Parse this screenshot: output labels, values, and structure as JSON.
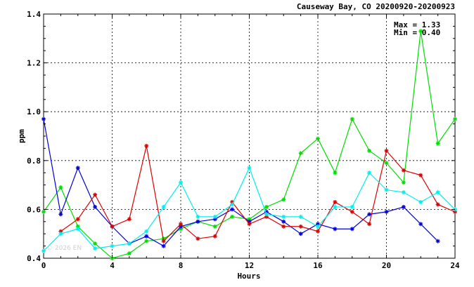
{
  "chart_data": {
    "type": "line",
    "title": "Causeway Bay, CO 20200920-20200923",
    "xlabel": "Hours",
    "ylabel": "ppm",
    "xlim": [
      0,
      24
    ],
    "ylim": [
      0.4,
      1.4
    ],
    "x_ticks": [
      "0",
      "4",
      "8",
      "12",
      "16",
      "20",
      "24"
    ],
    "y_ticks": [
      "0.4",
      "0.6",
      "0.8",
      "1.0",
      "1.2",
      "1.4"
    ],
    "grid": true,
    "stats": {
      "max": "Max = 1.33",
      "min": "Min = 0.40"
    },
    "watermark": "© 2026 EN",
    "series": [
      {
        "color": "#00dd00",
        "x": [
          0,
          1,
          2,
          3,
          4,
          5,
          6,
          7,
          8,
          9,
          10,
          11,
          12,
          13,
          14,
          15,
          16,
          17,
          18,
          19,
          20,
          21,
          22,
          23,
          24
        ],
        "values": [
          0.59,
          0.69,
          0.53,
          0.46,
          0.4,
          0.42,
          0.47,
          0.48,
          0.52,
          0.55,
          0.53,
          0.57,
          0.56,
          0.61,
          0.64,
          0.83,
          0.89,
          0.75,
          0.97,
          0.84,
          0.79,
          0.71,
          1.33,
          0.87,
          0.97
        ]
      },
      {
        "color": "#0000dd",
        "x": [
          0,
          1,
          2,
          3,
          4,
          5,
          6,
          7,
          8,
          9,
          10,
          11,
          12,
          13,
          14,
          15,
          16,
          17,
          18,
          19,
          20,
          21,
          22,
          23
        ],
        "values": [
          0.97,
          0.58,
          0.77,
          0.61,
          0.53,
          0.46,
          0.49,
          0.45,
          0.53,
          0.55,
          0.56,
          0.6,
          0.55,
          0.59,
          0.55,
          0.5,
          0.54,
          0.52,
          0.52,
          0.58,
          0.59,
          0.61,
          0.54,
          0.47
        ]
      },
      {
        "color": "#dd0000",
        "x": [
          1,
          2,
          3,
          4,
          5,
          6,
          7,
          8,
          9,
          10,
          11,
          12,
          13,
          14,
          15,
          16,
          17,
          18,
          19,
          20,
          21,
          22,
          23,
          24
        ],
        "values": [
          0.51,
          0.56,
          0.66,
          0.53,
          0.56,
          0.86,
          0.47,
          0.54,
          0.48,
          0.49,
          0.63,
          0.54,
          0.57,
          0.53,
          0.53,
          0.51,
          0.63,
          0.59,
          0.54,
          0.84,
          0.76,
          0.74,
          0.62,
          0.59
        ]
      },
      {
        "color": "#00eeee",
        "x": [
          0,
          1,
          2,
          3,
          4,
          5,
          6,
          7,
          8,
          9,
          10,
          11,
          12,
          13,
          14,
          15,
          16,
          17,
          18,
          19,
          20,
          21,
          22,
          23,
          24
        ],
        "values": [
          0.43,
          0.5,
          0.52,
          0.44,
          0.45,
          0.46,
          0.51,
          0.61,
          0.71,
          0.57,
          0.57,
          0.62,
          0.77,
          0.58,
          0.57,
          0.57,
          0.53,
          0.61,
          0.61,
          0.75,
          0.68,
          0.67,
          0.63,
          0.67,
          0.6
        ]
      }
    ]
  }
}
